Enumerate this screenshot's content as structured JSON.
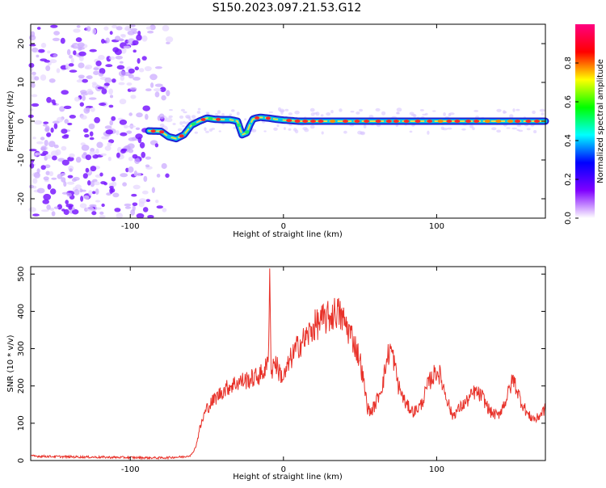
{
  "title": "S150.2023.097.21.53.G12",
  "chart_data": [
    {
      "type": "heatmap",
      "xlabel": "Height of straight line (km)",
      "ylabel": "Frequency (Hz)",
      "xlim": [
        -165,
        171
      ],
      "ylim": [
        -25,
        25
      ],
      "xticks": [
        -100,
        0,
        100
      ],
      "yticks": [
        -20,
        -10,
        0,
        10,
        20
      ],
      "colorbar": {
        "label": "Normalized spectral amplitude",
        "range": [
          0.0,
          1.0
        ],
        "ticks": [
          0.0,
          0.2,
          0.4,
          0.6,
          0.8
        ],
        "colors": [
          "#ffffff",
          "#8000ff",
          "#0000ff",
          "#00ffff",
          "#00ff00",
          "#ffff00",
          "#ff0000",
          "#ff0080"
        ]
      },
      "signal_line": {
        "x": [
          -88,
          -80,
          -75,
          -70,
          -65,
          -60,
          -55,
          -50,
          -45,
          -40,
          -35,
          -30,
          -27,
          -24,
          -22,
          -20,
          -18,
          -15,
          -10,
          -5,
          0,
          10,
          20,
          40,
          60,
          80,
          100,
          120,
          140,
          160,
          171
        ],
        "y": [
          -2.5,
          -2.6,
          -4,
          -4.5,
          -3.5,
          -1,
          0,
          0.8,
          0.5,
          0.4,
          0.4,
          0,
          -3.5,
          -3,
          -1,
          0.5,
          0.8,
          1,
          0.8,
          0.5,
          0.3,
          0,
          0,
          0,
          0,
          0,
          0,
          0,
          0,
          0,
          0
        ]
      },
      "noise_region_x": [
        -165,
        -85
      ]
    },
    {
      "type": "line",
      "xlabel": "Height of straight line (km)",
      "ylabel": "SNR (10 * v/v)",
      "xlim": [
        -165,
        171
      ],
      "ylim": [
        0,
        520
      ],
      "xticks": [
        -100,
        0,
        100
      ],
      "yticks": [
        0,
        100,
        200,
        300,
        400,
        500
      ],
      "color": "#e8322a",
      "series": [
        {
          "x": [
            -165,
            -140,
            -120,
            -100,
            -80,
            -65,
            -60,
            -57,
            -55,
            -52,
            -50,
            -45,
            -40,
            -35,
            -30,
            -25,
            -20,
            -15,
            -12,
            -10,
            -9,
            -8,
            -6,
            -3,
            0,
            5,
            10,
            15,
            20,
            25,
            30,
            35,
            40,
            45,
            50,
            55,
            57,
            60,
            65,
            68,
            70,
            72,
            75,
            80,
            85,
            90,
            95,
            100,
            102,
            105,
            108,
            110,
            115,
            120,
            125,
            130,
            135,
            140,
            145,
            150,
            155,
            160,
            165,
            171
          ],
          "y": [
            12,
            10,
            9,
            8,
            7,
            10,
            15,
            40,
            80,
            120,
            140,
            165,
            185,
            200,
            210,
            215,
            220,
            230,
            245,
            260,
            515,
            230,
            270,
            240,
            220,
            275,
            310,
            330,
            360,
            375,
            385,
            400,
            370,
            330,
            270,
            140,
            130,
            150,
            210,
            280,
            300,
            270,
            200,
            150,
            130,
            150,
            210,
            240,
            230,
            190,
            150,
            120,
            140,
            160,
            185,
            170,
            130,
            120,
            160,
            220,
            160,
            120,
            110,
            140
          ]
        }
      ]
    }
  ]
}
